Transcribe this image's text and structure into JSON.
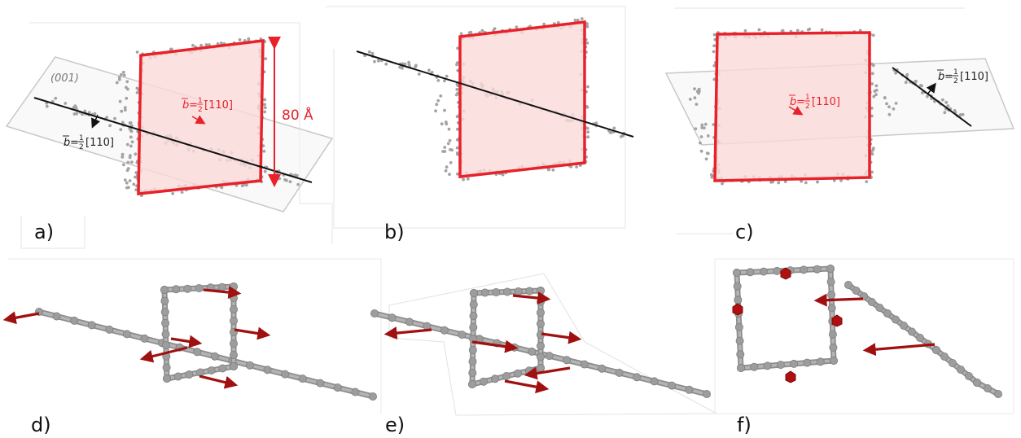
{
  "panels": {
    "a": {
      "label": "a)",
      "plane_label": "(001)",
      "burgers_red": "[̄110]",
      "burgers_black": "[110]",
      "scale": "80 Å"
    },
    "b": {
      "label": "b)"
    },
    "c": {
      "label": "c)",
      "burgers_red": "[̄110]",
      "burgers_black": "[110]"
    },
    "d": {
      "label": "d)"
    },
    "e": {
      "label": "e)"
    },
    "f": {
      "label": "f)"
    }
  },
  "burgers": {
    "prefix": "b",
    "eq": "=",
    "num": "1",
    "den": "2"
  },
  "colors": {
    "loop": "#e8222a",
    "loop_fill": "#fbd9da",
    "line": "#111111",
    "atoms": "#a0a0a0",
    "node": "#9a9a9a",
    "arrow": "#a01010",
    "plane": "#c8c8c8"
  }
}
